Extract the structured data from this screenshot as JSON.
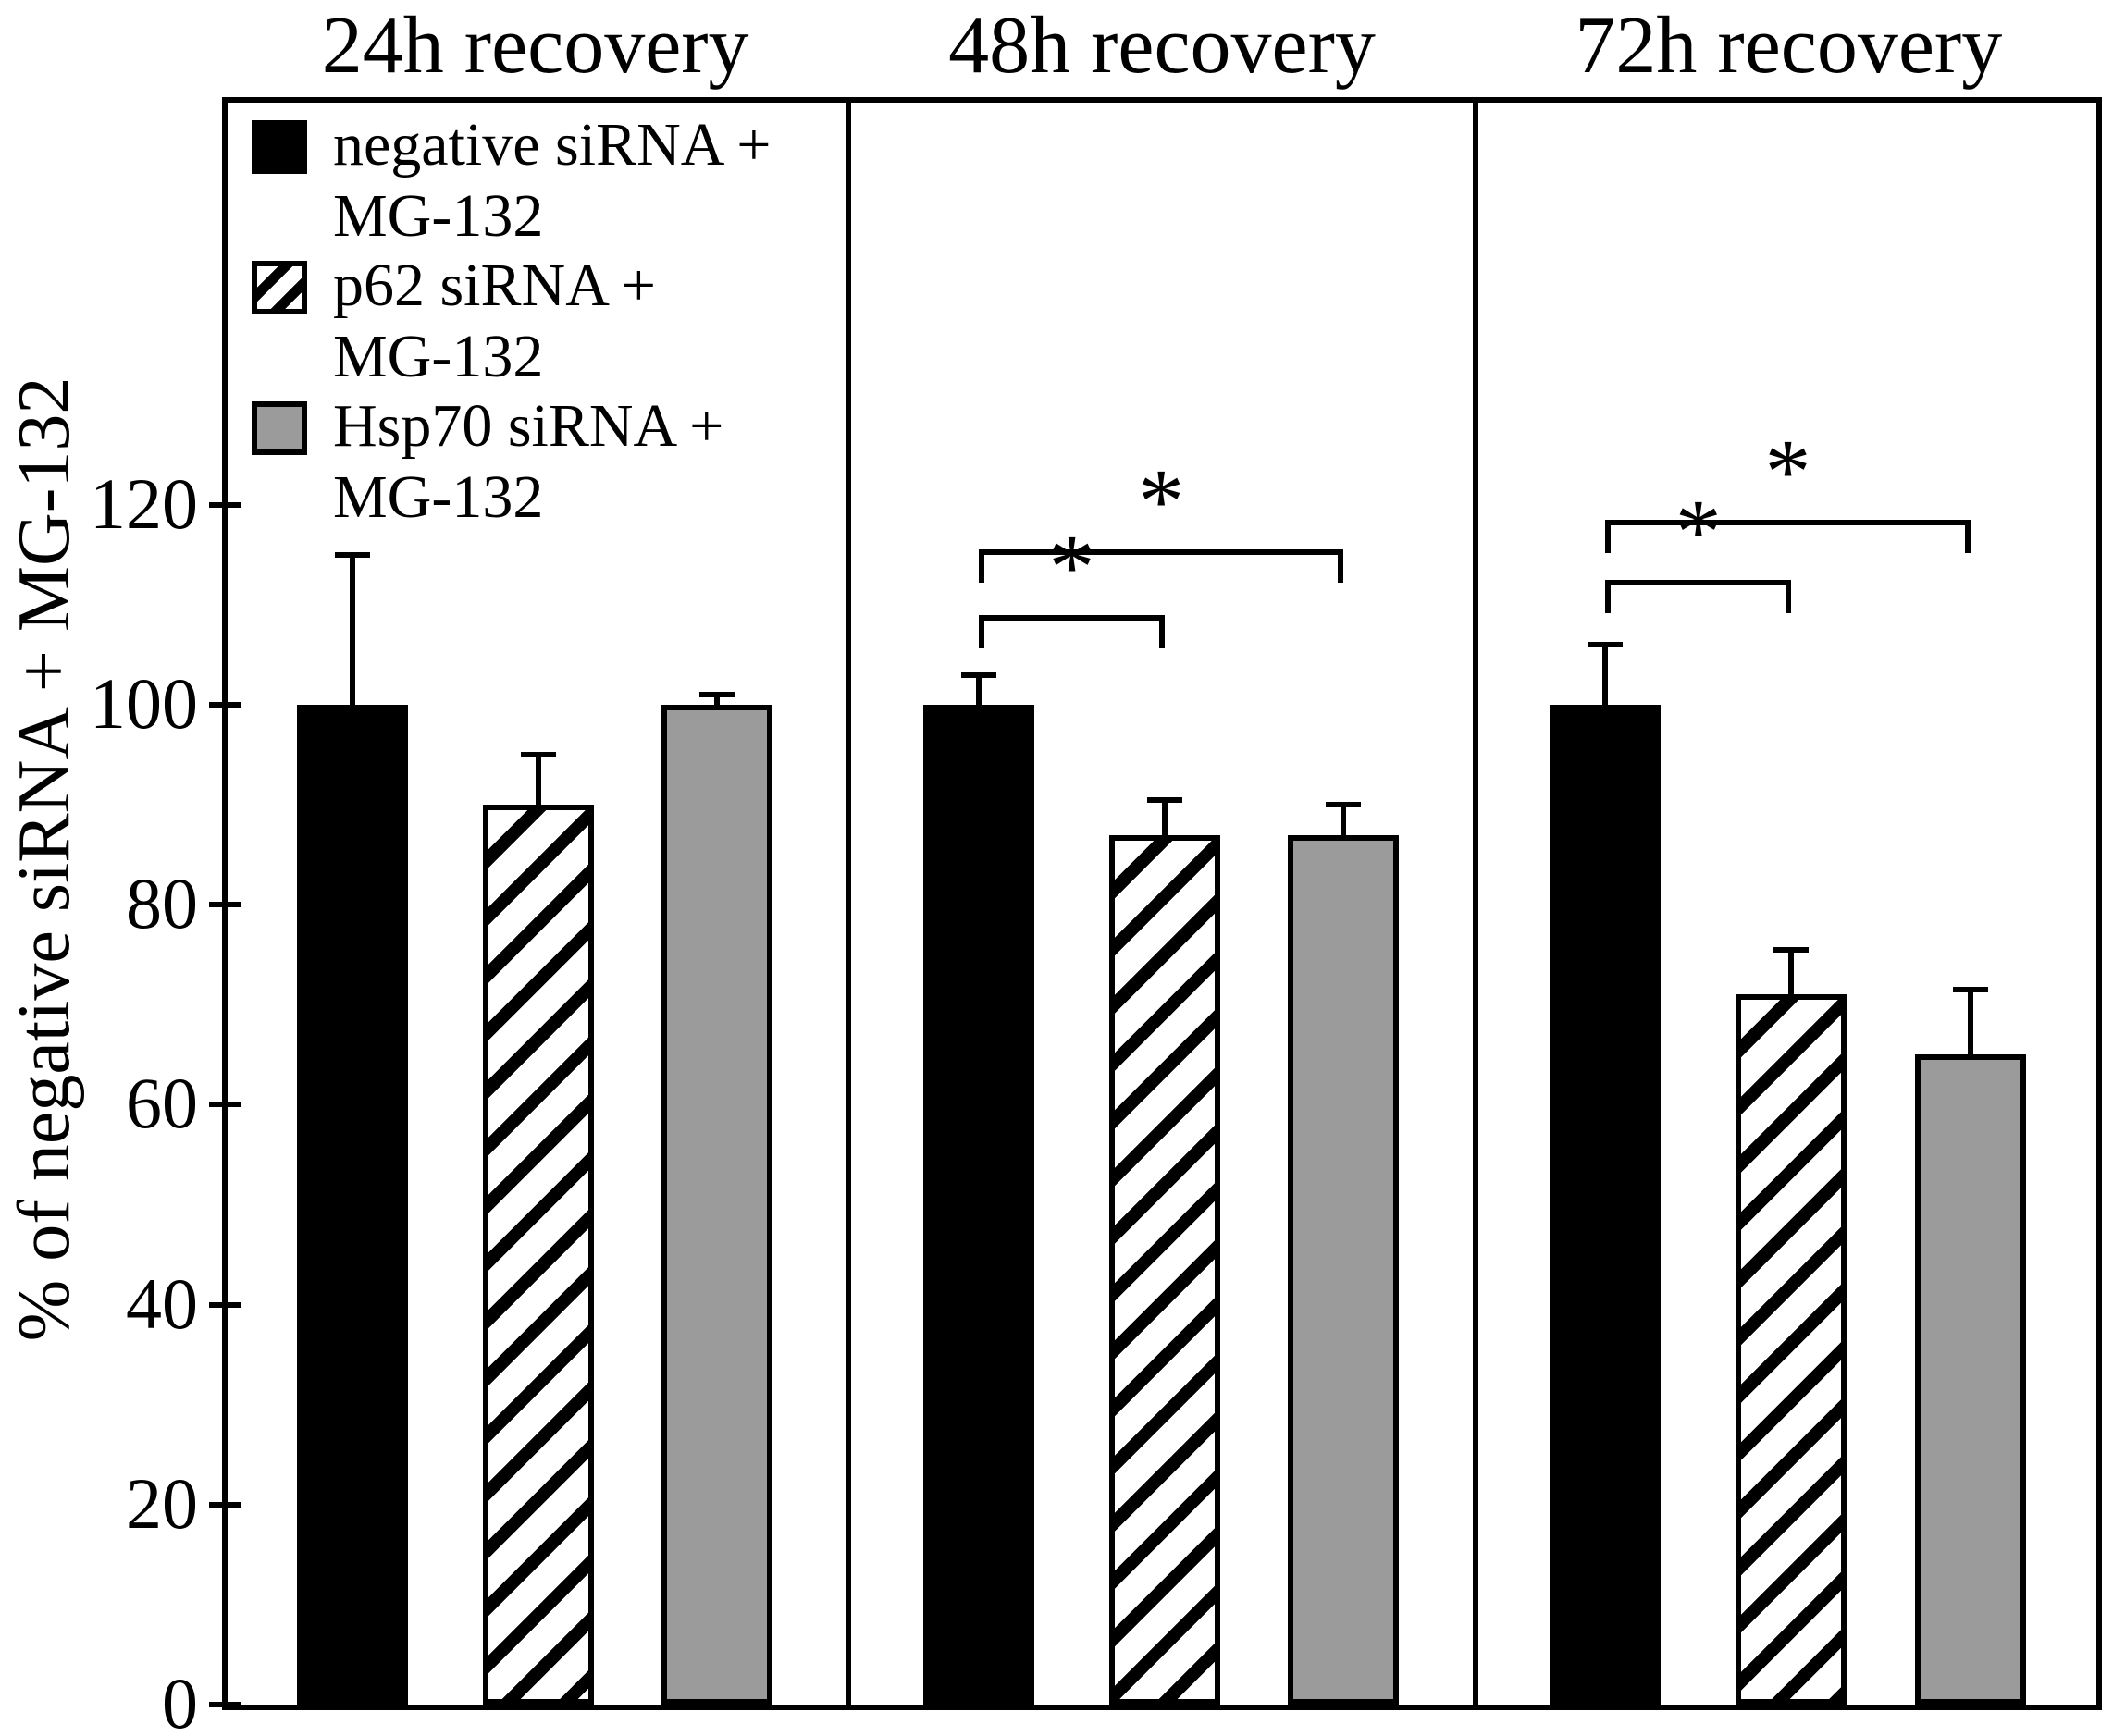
{
  "figure_title": "",
  "chart_data": {
    "type": "bar",
    "title": "",
    "xlabel": "",
    "ylabel": "% of negative siRNA + MG-132",
    "ylim": [
      0,
      160
    ],
    "yticks": [
      0,
      20,
      40,
      60,
      80,
      100,
      120
    ],
    "grid": false,
    "legend_position": "top-left",
    "series_names": [
      "negative siRNA + MG-132",
      "p62 siRNA + MG-132",
      "Hsp70 siRNA + MG-132"
    ],
    "legend": [
      {
        "line1": "negative siRNA +",
        "line2": "MG-132",
        "pattern": "solid-black"
      },
      {
        "line1": "p62 siRNA +",
        "line2": "MG-132",
        "pattern": "diagonal-hatch"
      },
      {
        "line1": "Hsp70 siRNA +",
        "line2": "MG-132",
        "pattern": "solid-gray"
      }
    ],
    "panels": [
      {
        "title": "24h recovery",
        "bars": [
          {
            "series": "negative siRNA + MG-132",
            "pattern": "solid-black",
            "value": 100,
            "error_up": 15
          },
          {
            "series": "p62 siRNA + MG-132",
            "pattern": "diagonal-hatch",
            "value": 90,
            "error_up": 5
          },
          {
            "series": "Hsp70 siRNA + MG-132",
            "pattern": "solid-gray",
            "value": 100,
            "error_up": 1
          }
        ],
        "brackets": []
      },
      {
        "title": "48h recovery",
        "bars": [
          {
            "series": "negative siRNA + MG-132",
            "pattern": "solid-black",
            "value": 100,
            "error_up": 3
          },
          {
            "series": "p62 siRNA + MG-132",
            "pattern": "diagonal-hatch",
            "value": 87,
            "error_up": 3.5
          },
          {
            "series": "Hsp70 siRNA + MG-132",
            "pattern": "solid-gray",
            "value": 87,
            "error_up": 3
          }
        ],
        "brackets": [
          {
            "from": 0,
            "to": 1,
            "label": "*",
            "y_value": 109
          },
          {
            "from": 0,
            "to": 2,
            "label": "*",
            "y_value": 115.5
          }
        ]
      },
      {
        "title": "72h recovery",
        "bars": [
          {
            "series": "negative siRNA + MG-132",
            "pattern": "solid-black",
            "value": 100,
            "error_up": 6
          },
          {
            "series": "p62 siRNA + MG-132",
            "pattern": "diagonal-hatch",
            "value": 71,
            "error_up": 4.5
          },
          {
            "series": "Hsp70 siRNA + MG-132",
            "pattern": "solid-gray",
            "value": 65,
            "error_up": 6.5
          }
        ],
        "brackets": [
          {
            "from": 0,
            "to": 1,
            "label": "*",
            "y_value": 112.5
          },
          {
            "from": 0,
            "to": 2,
            "label": "*",
            "y_value": 118.5
          }
        ]
      }
    ],
    "colors": {
      "bar_black": "#000000",
      "bar_gray": "#9b9b9b",
      "bar_white": "#ffffff",
      "ink": "#000000"
    }
  }
}
